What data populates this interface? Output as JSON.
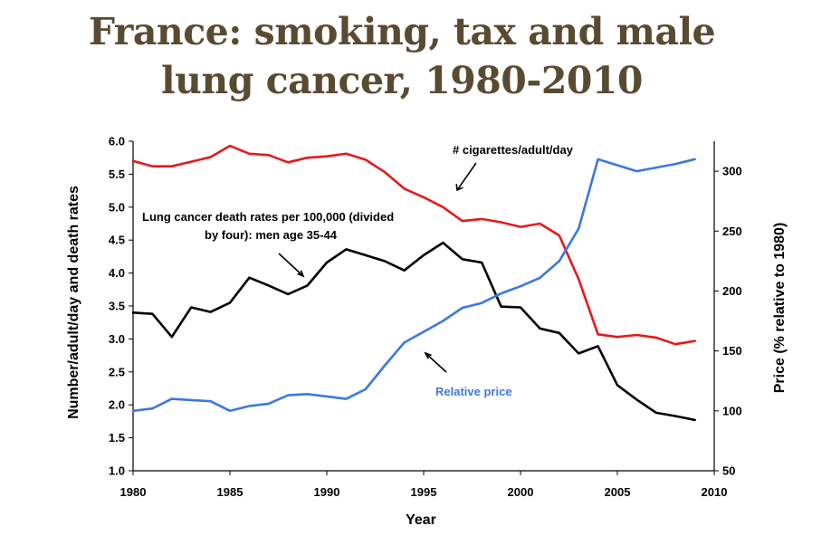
{
  "title_line1": "France: smoking, tax and male",
  "title_line2": "lung cancer, 1980-2010",
  "chart_data": {
    "type": "line",
    "xlabel": "Year",
    "ylabel_left": "Number/adult/day and death rates",
    "ylabel_right": "Price (% relative to 1980)",
    "xlim": [
      1980,
      2010
    ],
    "x_ticks": [
      1980,
      1985,
      1990,
      1995,
      2000,
      2005,
      2010
    ],
    "ylim_left": [
      1.0,
      6.0
    ],
    "y_ticks_left": [
      "1.0",
      "1.5",
      "2.0",
      "2.5",
      "3.0",
      "3.5",
      "4.0",
      "4.5",
      "5.0",
      "5.5",
      "6.0"
    ],
    "ylim_right": [
      50,
      325
    ],
    "y_ticks_right": [
      50,
      100,
      150,
      200,
      250,
      300
    ],
    "grid": false,
    "annotations": {
      "cigarettes": "# cigarettes/adult/day",
      "lung_line1": "Lung cancer death rates per 100,000 (divided",
      "lung_line2": "by four): men age 35-44",
      "price": "Relative price"
    },
    "series": [
      {
        "key": "cigarettes",
        "axis": "left",
        "color": "#e41a1c",
        "x": [
          1980,
          1981,
          1982,
          1983,
          1984,
          1985,
          1986,
          1987,
          1988,
          1989,
          1990,
          1991,
          1992,
          1993,
          1994,
          1995,
          1996,
          1997,
          1998,
          1999,
          2000,
          2001,
          2002,
          2003,
          2004,
          2005,
          2006,
          2007,
          2008,
          2009
        ],
        "y": [
          5.7,
          5.62,
          5.62,
          5.69,
          5.76,
          5.93,
          5.81,
          5.79,
          5.68,
          5.75,
          5.77,
          5.81,
          5.72,
          5.53,
          5.28,
          5.15,
          5.0,
          4.79,
          4.82,
          4.77,
          4.7,
          4.75,
          4.57,
          3.91,
          3.07,
          3.03,
          3.06,
          3.02,
          2.92,
          2.97
        ]
      },
      {
        "key": "lung_cancer",
        "axis": "left",
        "color": "#000000",
        "x": [
          1980,
          1981,
          1982,
          1983,
          1984,
          1985,
          1986,
          1987,
          1988,
          1989,
          1990,
          1991,
          1992,
          1993,
          1994,
          1995,
          1996,
          1997,
          1998,
          1999,
          2000,
          2001,
          2002,
          2003,
          2004,
          2005,
          2006,
          2007,
          2008,
          2009
        ],
        "y": [
          3.4,
          3.38,
          3.03,
          3.48,
          3.41,
          3.55,
          3.93,
          3.81,
          3.68,
          3.81,
          4.16,
          4.36,
          4.27,
          4.18,
          4.04,
          4.27,
          4.46,
          4.21,
          4.16,
          3.49,
          3.48,
          3.16,
          3.09,
          2.78,
          2.89,
          2.3,
          2.08,
          1.88,
          1.83,
          1.77
        ]
      },
      {
        "key": "price",
        "axis": "right",
        "color": "#3c78e0",
        "x": [
          1980,
          1981,
          1982,
          1983,
          1984,
          1985,
          1986,
          1987,
          1988,
          1989,
          1990,
          1991,
          1992,
          1993,
          1994,
          1995,
          1996,
          1997,
          1998,
          1999,
          2000,
          2001,
          2002,
          2003,
          2004,
          2005,
          2006,
          2007,
          2008,
          2009
        ],
        "y": [
          100,
          102,
          110,
          109,
          108,
          100,
          104,
          106,
          113,
          114,
          112,
          110,
          118,
          138,
          157,
          166,
          175,
          186,
          190,
          198,
          204,
          211,
          225,
          252,
          310,
          305,
          300,
          303,
          306,
          310
        ]
      }
    ]
  }
}
